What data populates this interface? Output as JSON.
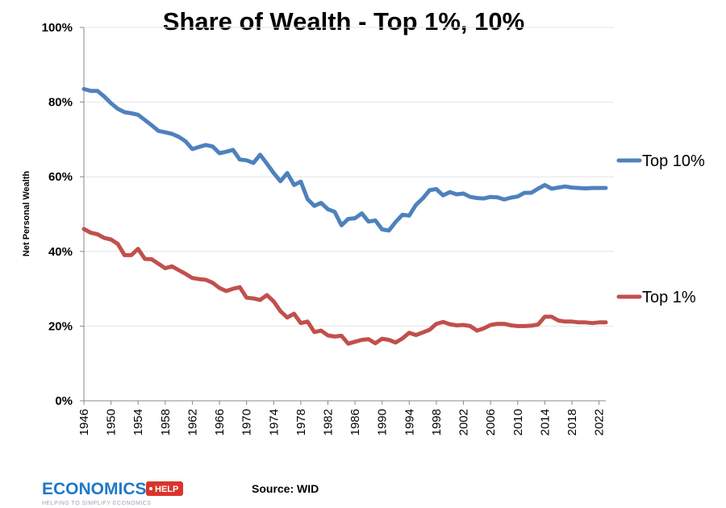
{
  "chart_data": {
    "type": "line",
    "title": "Share of Wealth - Top 1%, 10%",
    "ylabel": "Net Personal Wealth",
    "xlabel": "",
    "xlim": [
      1946,
      2023
    ],
    "ylim": [
      0,
      100
    ],
    "y_ticks": [
      "0%",
      "20%",
      "40%",
      "60%",
      "80%",
      "100%"
    ],
    "x_ticks": [
      "1946",
      "1950",
      "1954",
      "1958",
      "1962",
      "1966",
      "1970",
      "1974",
      "1978",
      "1982",
      "1986",
      "1990",
      "1994",
      "1998",
      "2002",
      "2006",
      "2010",
      "2014",
      "2018",
      "2022"
    ],
    "grid": true,
    "legend": "right, inline next to line ends",
    "source": "Source: WID",
    "x": [
      1946,
      1947,
      1948,
      1949,
      1950,
      1951,
      1952,
      1953,
      1954,
      1955,
      1956,
      1957,
      1958,
      1959,
      1960,
      1961,
      1962,
      1963,
      1964,
      1965,
      1966,
      1967,
      1968,
      1969,
      1970,
      1971,
      1972,
      1973,
      1974,
      1975,
      1976,
      1977,
      1978,
      1979,
      1980,
      1981,
      1982,
      1983,
      1984,
      1985,
      1986,
      1987,
      1988,
      1989,
      1990,
      1991,
      1992,
      1993,
      1994,
      1995,
      1996,
      1997,
      1998,
      1999,
      2000,
      2001,
      2002,
      2003,
      2004,
      2005,
      2006,
      2007,
      2008,
      2009,
      2010,
      2011,
      2012,
      2013,
      2014,
      2015,
      2016,
      2017,
      2018,
      2019,
      2020,
      2021,
      2022,
      2023
    ],
    "series": [
      {
        "name": "Top 10%",
        "color": "#4f81bd",
        "values": [
          83.5,
          83.0,
          83.0,
          81.5,
          79.7,
          78.2,
          77.3,
          77.0,
          76.6,
          75.2,
          73.8,
          72.3,
          71.9,
          71.5,
          70.7,
          69.5,
          67.4,
          68.0,
          68.5,
          68.1,
          66.3,
          66.7,
          67.2,
          64.6,
          64.4,
          63.7,
          65.9,
          63.5,
          61.0,
          58.8,
          61.0,
          57.8,
          58.7,
          54.0,
          52.2,
          53.0,
          51.3,
          50.6,
          47.0,
          48.7,
          48.9,
          50.2,
          48.0,
          48.3,
          45.9,
          45.6,
          47.9,
          49.8,
          49.6,
          52.5,
          54.2,
          56.4,
          56.7,
          55.0,
          55.9,
          55.3,
          55.5,
          54.6,
          54.3,
          54.2,
          54.6,
          54.5,
          53.9,
          54.4,
          54.7,
          55.7,
          55.7,
          56.8,
          57.8,
          56.8,
          57.1,
          57.4,
          57.1,
          57.0,
          56.9,
          57.0,
          57.0,
          57.0
        ]
      },
      {
        "name": "Top 1%",
        "color": "#c0504d",
        "values": [
          46.0,
          45.0,
          44.6,
          43.6,
          43.2,
          42.0,
          39.0,
          39.0,
          40.7,
          38.0,
          37.9,
          36.7,
          35.5,
          36.0,
          35.0,
          34.0,
          32.9,
          32.6,
          32.4,
          31.6,
          30.2,
          29.4,
          30.0,
          30.4,
          27.6,
          27.4,
          27.0,
          28.3,
          26.6,
          24.0,
          22.3,
          23.3,
          20.8,
          21.2,
          18.4,
          18.8,
          17.5,
          17.2,
          17.4,
          15.3,
          15.8,
          16.3,
          16.5,
          15.4,
          16.6,
          16.3,
          15.6,
          16.7,
          18.2,
          17.6,
          18.3,
          19.0,
          20.6,
          21.1,
          20.5,
          20.2,
          20.3,
          20.0,
          18.8,
          19.4,
          20.3,
          20.6,
          20.6,
          20.2,
          20.0,
          20.0,
          20.1,
          20.4,
          22.5,
          22.5,
          21.5,
          21.2,
          21.2,
          21.0,
          21.0,
          20.8,
          21.0,
          21.0
        ]
      }
    ]
  },
  "logo": {
    "main": "ECONOMICS",
    "badge": "HELP",
    "tagline": "HELPING TO SIMPLIFY ECONOMICS",
    "colors": {
      "main": "#1f78c8",
      "badge": "#d9342b"
    }
  }
}
